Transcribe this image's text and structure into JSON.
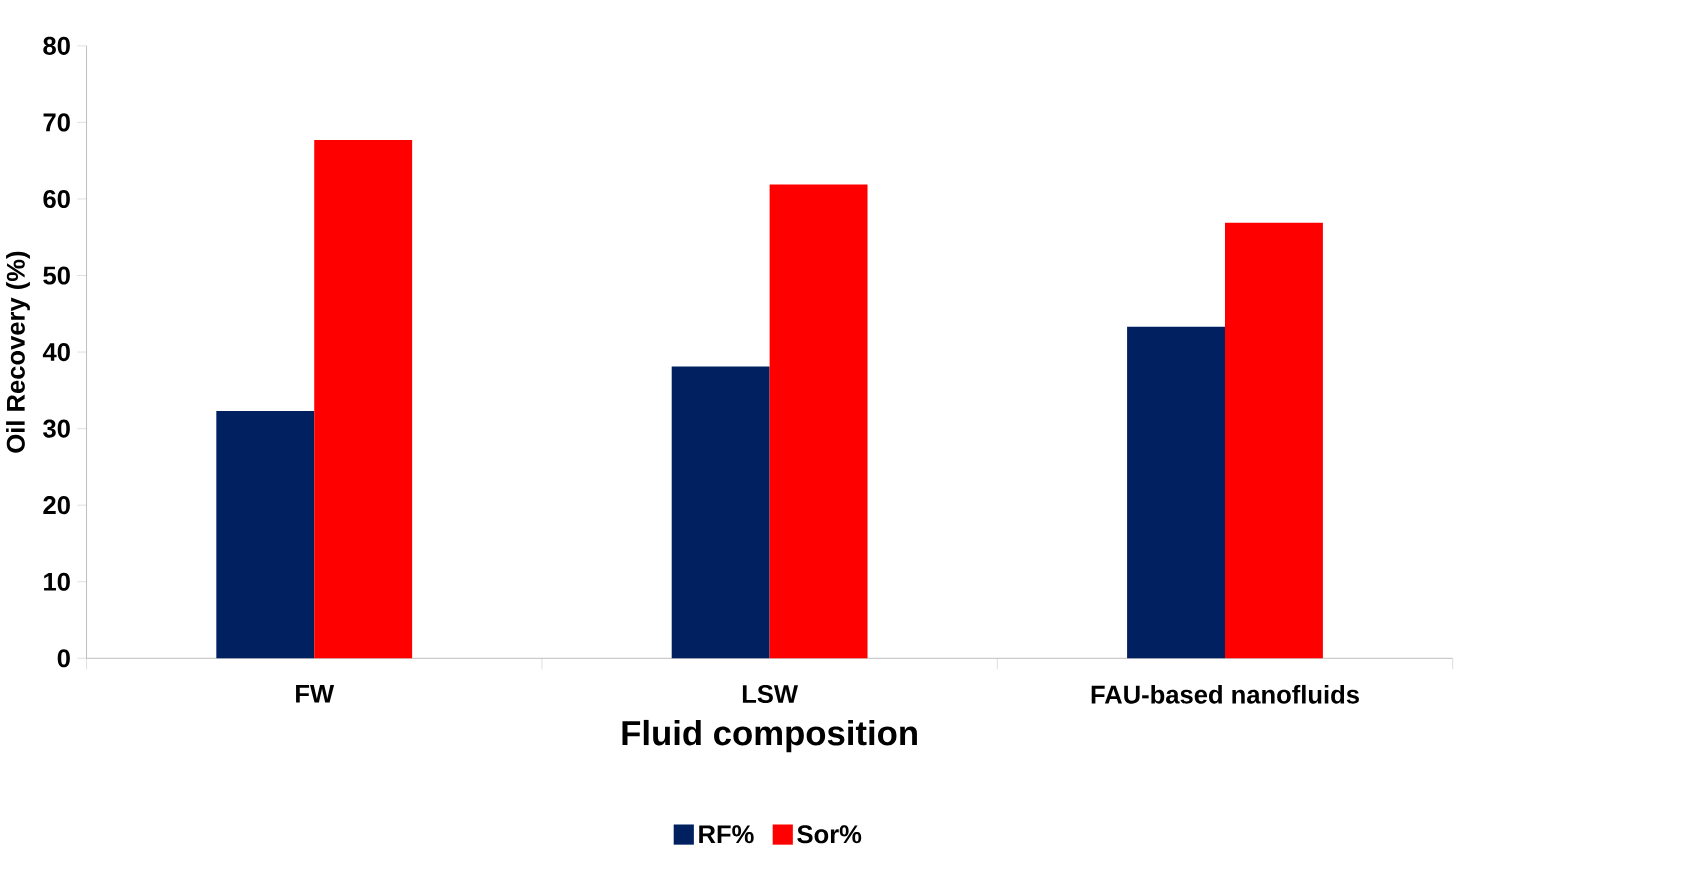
{
  "chart_data": {
    "type": "bar",
    "xlabel": "Fluid composition",
    "ylabel": "Oil Recovery (%)",
    "categories": [
      "FW",
      "LSW",
      "FAU-based nanofluids"
    ],
    "series": [
      {
        "name": "RF%",
        "color": "#002060",
        "values": [
          32.3,
          38.1,
          43.3
        ]
      },
      {
        "name": "Sor%",
        "color": "#ff0000",
        "values": [
          67.7,
          61.9,
          56.9
        ]
      }
    ],
    "ylim": [
      0,
      80
    ],
    "yticks": [
      0,
      10,
      20,
      30,
      40,
      50,
      60,
      70,
      80
    ],
    "grid": false,
    "legend": "bottom"
  }
}
